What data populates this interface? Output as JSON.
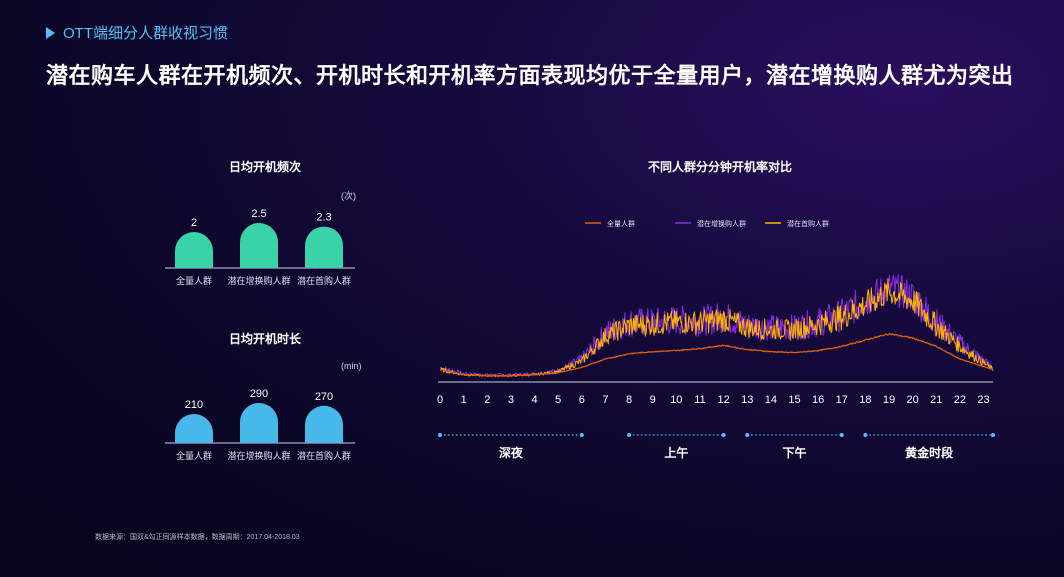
{
  "header": {
    "section_tag": "OTT端细分人群收视习惯",
    "headline": "潜在购车人群在开机频次、开机时长和开机率方面表现均优于全量用户，潜在增换购人群尤为突出"
  },
  "footer": {
    "source": "数据来源：国双&勾正同源样本数据，数据周期：2017.04-2018.03"
  },
  "colors": {
    "frequency_bar": "#38d3a6",
    "duration_bar": "#47b8ea",
    "all_users": "#e35a10",
    "upgrade": "#8a2be2",
    "first_buy": "#ffb300"
  },
  "chart_data": [
    {
      "type": "bar",
      "title": "日均开机频次",
      "unit": "(次)",
      "categories": [
        "全量人群",
        "潜在增换购人群",
        "潜在首购人群"
      ],
      "values": [
        2,
        2.5,
        2.3
      ],
      "value_labels": [
        "2",
        "2.5",
        "2.3"
      ]
    },
    {
      "type": "bar",
      "title": "日均开机时长",
      "unit": "(min)",
      "categories": [
        "全量人群",
        "潜在增换购人群",
        "潜在首购人群"
      ],
      "values": [
        210,
        290,
        270
      ],
      "value_labels": [
        "210",
        "290",
        "270"
      ]
    },
    {
      "type": "line",
      "title": "不同人群分分钟开机率对比",
      "x_ticks": [
        "0",
        "1",
        "2",
        "3",
        "4",
        "5",
        "6",
        "7",
        "8",
        "9",
        "10",
        "11",
        "12",
        "13",
        "14",
        "15",
        "16",
        "17",
        "18",
        "19",
        "20",
        "21",
        "22",
        "23"
      ],
      "xlim": [
        0,
        23.4
      ],
      "ylim": [
        0,
        1
      ],
      "legend_position": "top",
      "series": [
        {
          "name": "全量人群",
          "color": "#e35a10",
          "x": [
            0,
            1,
            2,
            3,
            4,
            5,
            6,
            7,
            8,
            9,
            10,
            11,
            12,
            13,
            14,
            15,
            16,
            17,
            18,
            19,
            20,
            21,
            22,
            23.4
          ],
          "y": [
            0.1,
            0.05,
            0.04,
            0.04,
            0.05,
            0.07,
            0.12,
            0.2,
            0.25,
            0.27,
            0.28,
            0.3,
            0.33,
            0.29,
            0.27,
            0.26,
            0.28,
            0.32,
            0.38,
            0.44,
            0.4,
            0.32,
            0.2,
            0.1
          ]
        },
        {
          "name": "潜在增换购人群",
          "color": "#8a2be2",
          "x": [
            0,
            1,
            2,
            3,
            4,
            5,
            6,
            7,
            8,
            9,
            10,
            11,
            12,
            13,
            14,
            15,
            16,
            17,
            18,
            19,
            20,
            21,
            22,
            23.4
          ],
          "y": [
            0.12,
            0.06,
            0.05,
            0.05,
            0.06,
            0.09,
            0.2,
            0.45,
            0.55,
            0.55,
            0.57,
            0.56,
            0.6,
            0.52,
            0.5,
            0.5,
            0.55,
            0.62,
            0.75,
            0.88,
            0.8,
            0.55,
            0.35,
            0.12
          ]
        },
        {
          "name": "潜在首购人群",
          "color": "#ffb300",
          "x": [
            0,
            1,
            2,
            3,
            4,
            5,
            6,
            7,
            8,
            9,
            10,
            11,
            12,
            13,
            14,
            15,
            16,
            17,
            18,
            19,
            20,
            21,
            22,
            23.4
          ],
          "y": [
            0.1,
            0.05,
            0.04,
            0.04,
            0.05,
            0.08,
            0.18,
            0.42,
            0.52,
            0.53,
            0.55,
            0.55,
            0.58,
            0.5,
            0.48,
            0.48,
            0.53,
            0.6,
            0.72,
            0.84,
            0.76,
            0.52,
            0.32,
            0.1
          ]
        }
      ],
      "periods": [
        {
          "label": "深夜",
          "start": 0,
          "end": 6
        },
        {
          "label": "上午",
          "start": 8,
          "end": 12
        },
        {
          "label": "下午",
          "start": 13,
          "end": 17
        },
        {
          "label": "黄金时段",
          "start": 18,
          "end": 23.4
        }
      ]
    }
  ]
}
